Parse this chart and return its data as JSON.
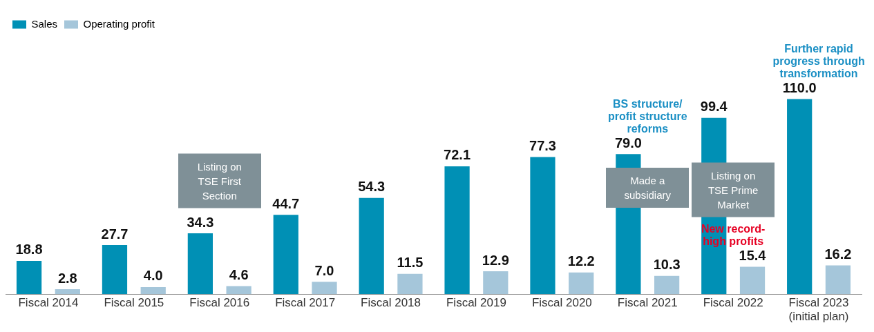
{
  "chart_data": {
    "type": "bar",
    "categories": [
      "Fiscal 2014",
      "Fiscal 2015",
      "Fiscal 2016",
      "Fiscal 2017",
      "Fiscal 2018",
      "Fiscal 2019",
      "Fiscal 2020",
      "Fiscal 2021",
      "Fiscal 2022",
      "Fiscal 2023 (initial plan)"
    ],
    "series": [
      {
        "name": "Sales",
        "color": "#0090b5",
        "values": [
          18.8,
          27.7,
          34.3,
          44.7,
          54.3,
          72.1,
          77.3,
          79.0,
          99.4,
          110.0
        ],
        "value_labels": [
          "18.8",
          "27.7",
          "34.3",
          "44.7",
          "54.3",
          "72.1",
          "77.3",
          "79.0",
          "99.4",
          "110.0"
        ]
      },
      {
        "name": "Operating profit",
        "color": "#a5c6da",
        "values": [
          2.8,
          4.0,
          4.6,
          7.0,
          11.5,
          12.9,
          12.2,
          10.3,
          15.4,
          16.2
        ],
        "value_labels": [
          "2.8",
          "4.0",
          "4.6",
          "7.0",
          "11.5",
          "12.9",
          "12.2",
          "10.3",
          "15.4",
          "16.2"
        ]
      }
    ],
    "legend": "top left",
    "grid": false,
    "annotations": [
      "BS structure/ profit structure reforms",
      "Listing on TSE First Section",
      "Made a subsidiary",
      "Listing on TSE Prime Market",
      "New record-high profits",
      "Further rapid progress through transformation"
    ]
  }
}
